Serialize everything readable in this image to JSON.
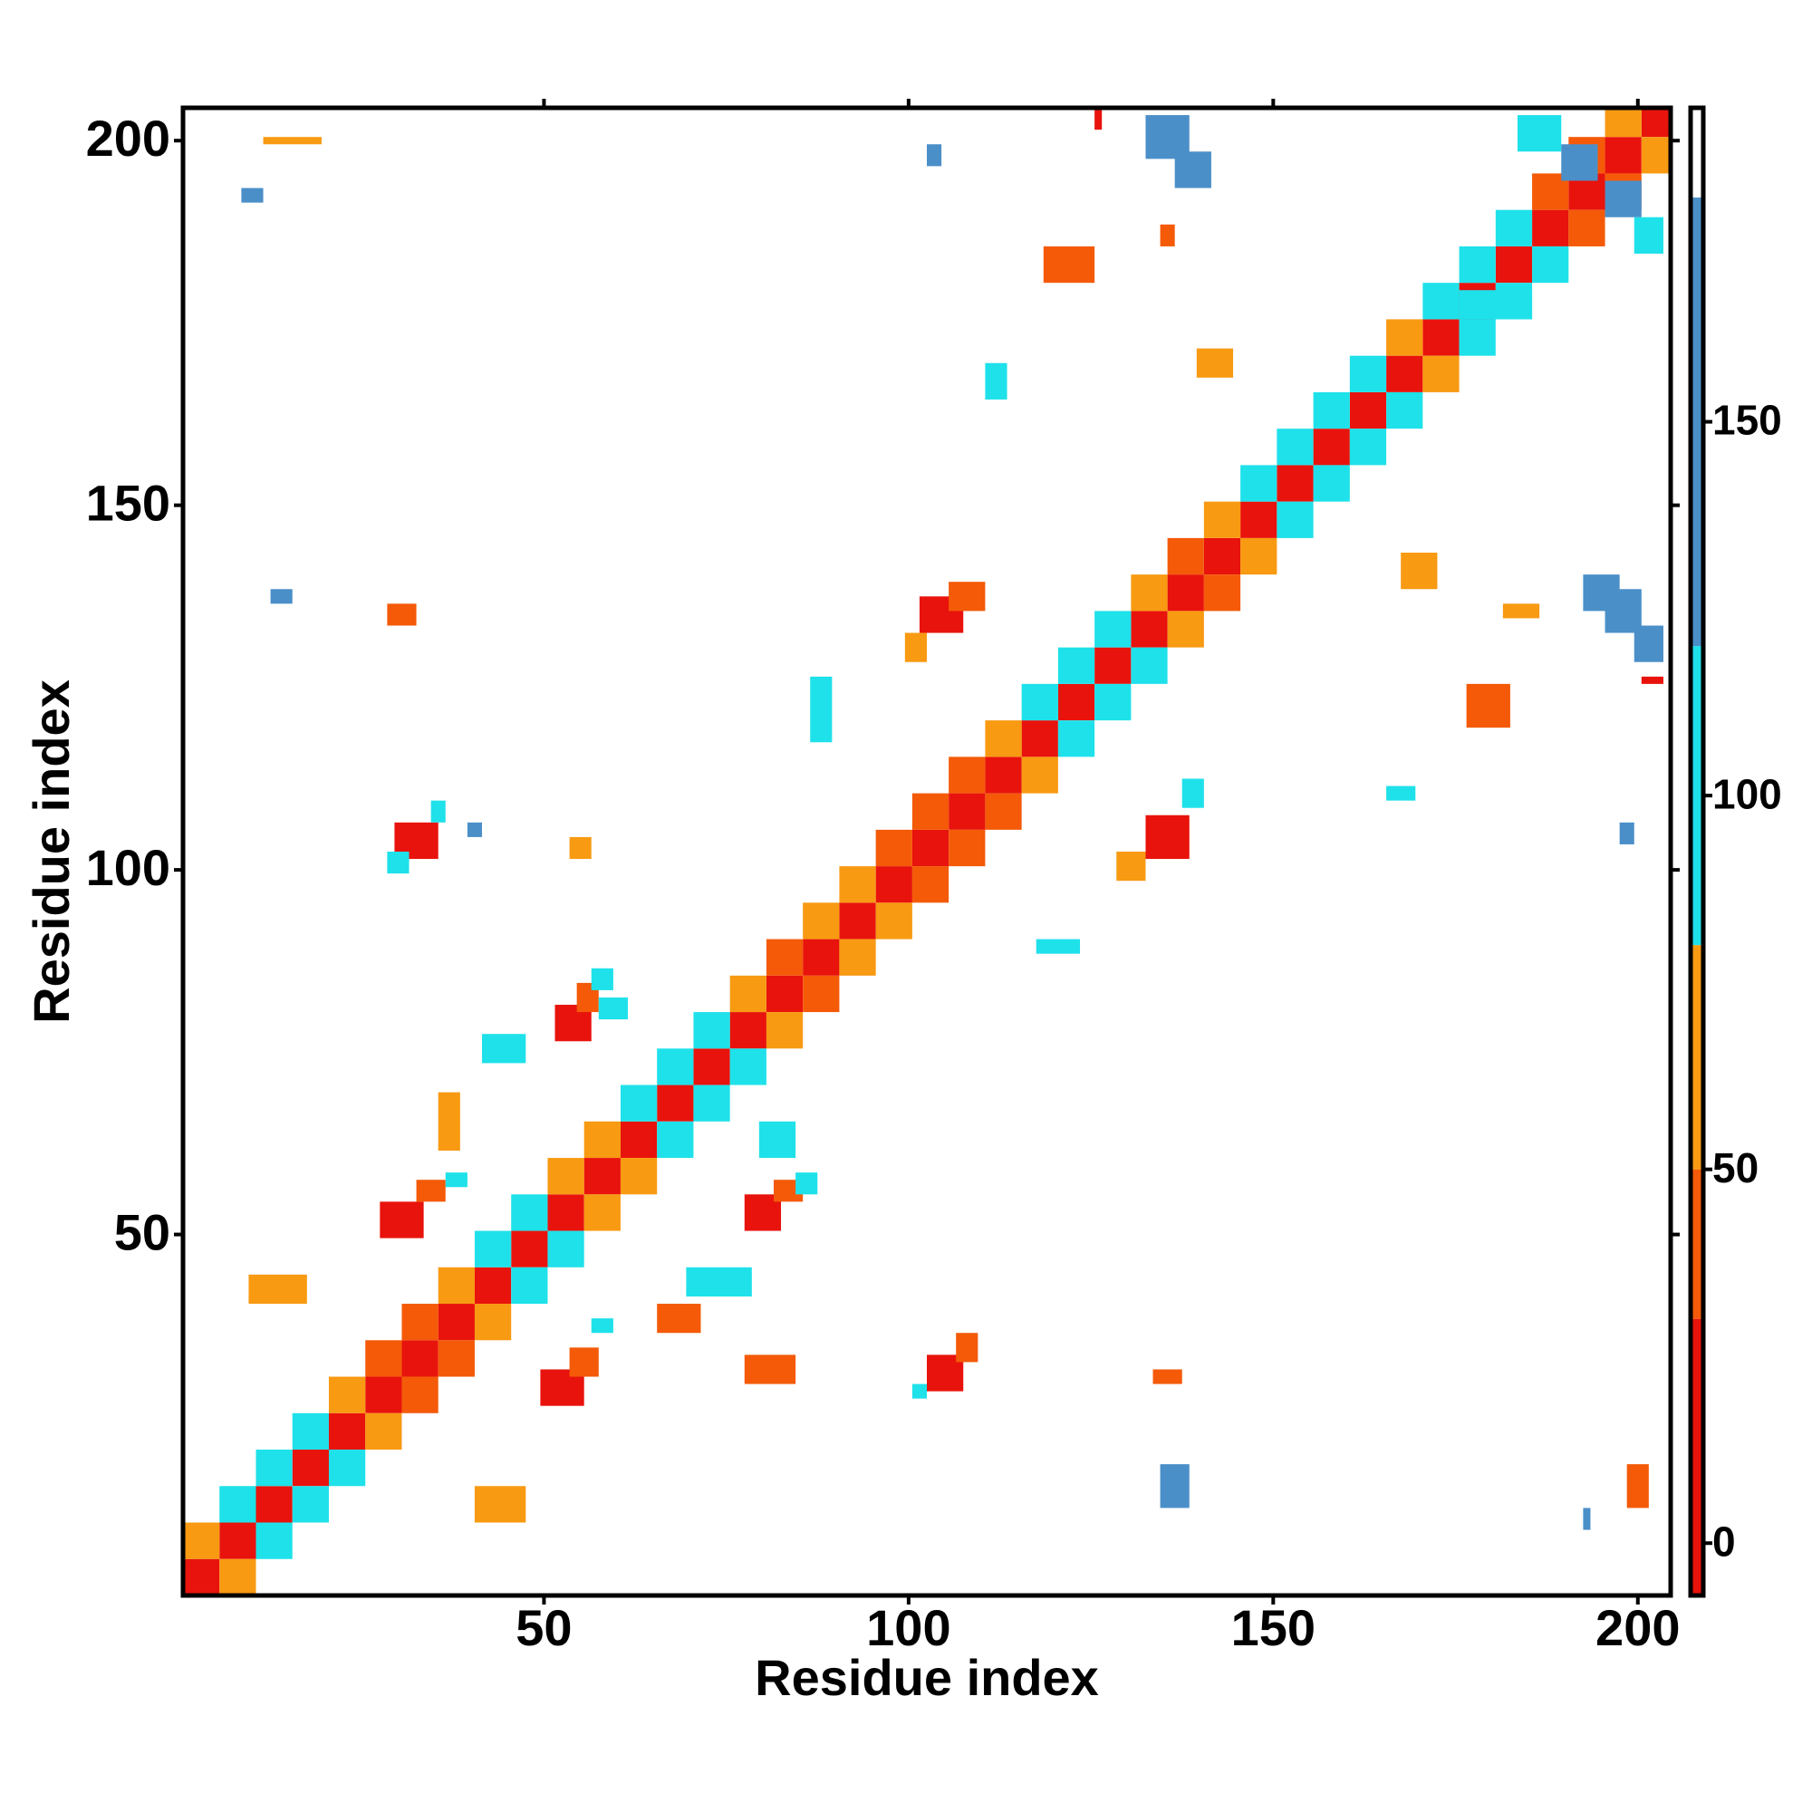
{
  "chart_data": {
    "type": "heatmap",
    "xlabel": "Residue index",
    "ylabel": "Residue index",
    "xlim": [
      0.5,
      204.5
    ],
    "ylim": [
      0.5,
      204.5
    ],
    "xticks": [
      50,
      100,
      150,
      200
    ],
    "yticks": [
      50,
      100,
      150,
      200
    ],
    "colorbar": {
      "levels": [
        -7,
        30,
        50,
        80,
        120,
        180,
        192
      ],
      "colors": [
        "#e8130c",
        "#f45a08",
        "#f89a12",
        "#1fe1ea",
        "#4b8fc8",
        "#ffffff"
      ],
      "ticks": [
        0,
        50,
        100,
        150
      ]
    },
    "cells": [
      [
        1,
        1,
        5,
        5,
        10
      ],
      [
        6,
        6,
        5,
        5,
        10
      ],
      [
        11,
        11,
        5,
        5,
        10
      ],
      [
        16,
        16,
        5,
        5,
        10
      ],
      [
        21,
        21,
        5,
        5,
        10
      ],
      [
        26,
        26,
        5,
        5,
        10
      ],
      [
        31,
        31,
        5,
        5,
        10
      ],
      [
        36,
        36,
        5,
        5,
        10
      ],
      [
        41,
        41,
        5,
        5,
        10
      ],
      [
        46,
        46,
        5,
        5,
        10
      ],
      [
        51,
        51,
        5,
        5,
        10
      ],
      [
        56,
        56,
        5,
        5,
        10
      ],
      [
        61,
        61,
        5,
        5,
        10
      ],
      [
        66,
        66,
        5,
        5,
        10
      ],
      [
        71,
        71,
        5,
        5,
        10
      ],
      [
        76,
        76,
        5,
        5,
        10
      ],
      [
        81,
        81,
        5,
        5,
        10
      ],
      [
        86,
        86,
        5,
        5,
        10
      ],
      [
        91,
        91,
        5,
        5,
        10
      ],
      [
        96,
        96,
        5,
        5,
        10
      ],
      [
        101,
        101,
        5,
        5,
        10
      ],
      [
        106,
        106,
        5,
        5,
        10
      ],
      [
        111,
        111,
        5,
        5,
        10
      ],
      [
        116,
        116,
        5,
        5,
        10
      ],
      [
        121,
        121,
        5,
        5,
        10
      ],
      [
        126,
        126,
        5,
        5,
        10
      ],
      [
        131,
        131,
        5,
        5,
        10
      ],
      [
        136,
        136,
        5,
        5,
        10
      ],
      [
        141,
        141,
        5,
        5,
        10
      ],
      [
        146,
        146,
        5,
        5,
        10
      ],
      [
        151,
        151,
        5,
        5,
        10
      ],
      [
        156,
        156,
        5,
        5,
        10
      ],
      [
        161,
        161,
        5,
        5,
        10
      ],
      [
        166,
        166,
        5,
        5,
        10
      ],
      [
        171,
        171,
        5,
        5,
        10
      ],
      [
        176,
        176,
        5,
        5,
        10
      ],
      [
        181,
        181,
        5,
        5,
        10
      ],
      [
        186,
        186,
        5,
        5,
        10
      ],
      [
        191,
        191,
        5,
        5,
        10
      ],
      [
        196,
        196,
        5,
        5,
        10
      ],
      [
        201,
        201,
        4,
        4,
        10
      ],
      [
        1,
        6,
        5,
        5,
        65
      ],
      [
        6,
        1,
        5,
        5,
        65
      ],
      [
        6,
        11,
        5,
        5,
        100
      ],
      [
        11,
        6,
        5,
        5,
        100
      ],
      [
        11,
        16,
        5,
        5,
        100
      ],
      [
        16,
        11,
        5,
        5,
        100
      ],
      [
        16,
        21,
        5,
        5,
        100
      ],
      [
        21,
        16,
        5,
        5,
        100
      ],
      [
        21,
        26,
        5,
        5,
        65
      ],
      [
        26,
        21,
        5,
        5,
        65
      ],
      [
        26,
        31,
        5,
        5,
        40
      ],
      [
        31,
        26,
        5,
        5,
        40
      ],
      [
        31,
        36,
        5,
        5,
        40
      ],
      [
        36,
        31,
        5,
        5,
        40
      ],
      [
        36,
        41,
        5,
        5,
        65
      ],
      [
        41,
        36,
        5,
        5,
        65
      ],
      [
        41,
        46,
        5,
        5,
        100
      ],
      [
        46,
        41,
        5,
        5,
        100
      ],
      [
        46,
        51,
        5,
        5,
        100
      ],
      [
        51,
        46,
        5,
        5,
        100
      ],
      [
        51,
        56,
        5,
        5,
        65
      ],
      [
        56,
        51,
        5,
        5,
        65
      ],
      [
        56,
        61,
        5,
        5,
        65
      ],
      [
        61,
        56,
        5,
        5,
        65
      ],
      [
        61,
        66,
        5,
        5,
        100
      ],
      [
        66,
        61,
        5,
        5,
        100
      ],
      [
        66,
        71,
        5,
        5,
        100
      ],
      [
        71,
        66,
        5,
        5,
        100
      ],
      [
        71,
        76,
        5,
        5,
        100
      ],
      [
        76,
        71,
        5,
        5,
        100
      ],
      [
        76,
        81,
        5,
        5,
        65
      ],
      [
        81,
        76,
        5,
        5,
        65
      ],
      [
        81,
        86,
        5,
        5,
        40
      ],
      [
        86,
        81,
        5,
        5,
        40
      ],
      [
        86,
        91,
        5,
        5,
        65
      ],
      [
        91,
        86,
        5,
        5,
        65
      ],
      [
        91,
        96,
        5,
        5,
        65
      ],
      [
        96,
        91,
        5,
        5,
        65
      ],
      [
        96,
        101,
        5,
        5,
        40
      ],
      [
        101,
        96,
        5,
        5,
        40
      ],
      [
        101,
        106,
        5,
        5,
        40
      ],
      [
        106,
        101,
        5,
        5,
        40
      ],
      [
        106,
        111,
        5,
        5,
        40
      ],
      [
        111,
        106,
        5,
        5,
        40
      ],
      [
        111,
        116,
        5,
        5,
        65
      ],
      [
        116,
        111,
        5,
        5,
        65
      ],
      [
        116,
        121,
        5,
        5,
        100
      ],
      [
        121,
        116,
        5,
        5,
        100
      ],
      [
        121,
        126,
        5,
        5,
        100
      ],
      [
        126,
        121,
        5,
        5,
        100
      ],
      [
        126,
        131,
        5,
        5,
        100
      ],
      [
        131,
        126,
        5,
        5,
        100
      ],
      [
        131,
        136,
        5,
        5,
        65
      ],
      [
        136,
        131,
        5,
        5,
        65
      ],
      [
        136,
        141,
        5,
        5,
        40
      ],
      [
        141,
        136,
        5,
        5,
        40
      ],
      [
        141,
        146,
        5,
        5,
        65
      ],
      [
        146,
        141,
        5,
        5,
        65
      ],
      [
        146,
        151,
        5,
        5,
        100
      ],
      [
        151,
        146,
        5,
        5,
        100
      ],
      [
        151,
        156,
        5,
        5,
        100
      ],
      [
        156,
        151,
        5,
        5,
        100
      ],
      [
        156,
        161,
        5,
        5,
        100
      ],
      [
        161,
        156,
        5,
        5,
        100
      ],
      [
        161,
        166,
        5,
        5,
        100
      ],
      [
        166,
        161,
        5,
        5,
        100
      ],
      [
        166,
        171,
        5,
        5,
        65
      ],
      [
        171,
        166,
        5,
        5,
        65
      ],
      [
        171,
        176,
        5,
        5,
        100
      ],
      [
        176,
        171,
        5,
        5,
        100
      ],
      [
        176,
        181,
        5,
        5,
        100
      ],
      [
        181,
        176,
        5,
        5,
        100
      ],
      [
        181,
        186,
        5,
        5,
        100
      ],
      [
        186,
        181,
        5,
        5,
        100
      ],
      [
        186,
        191,
        5,
        5,
        40
      ],
      [
        191,
        186,
        5,
        5,
        40
      ],
      [
        191,
        196,
        5,
        5,
        40
      ],
      [
        196,
        191,
        5,
        5,
        40
      ],
      [
        196,
        201,
        5,
        4,
        65
      ],
      [
        201,
        196,
        4,
        5,
        65
      ],
      [
        133,
        198,
        6,
        6,
        150
      ],
      [
        137,
        194,
        5,
        5,
        150
      ],
      [
        196,
        133,
        5,
        6,
        150
      ],
      [
        200,
        129,
        4,
        5,
        150
      ],
      [
        193,
        136,
        5,
        5,
        150
      ],
      [
        184,
        199,
        6,
        5,
        100
      ],
      [
        190,
        195,
        5,
        5,
        150
      ],
      [
        196,
        190,
        5,
        5,
        150
      ],
      [
        200,
        185,
        4,
        5,
        100
      ],
      [
        102,
        133,
        6,
        5,
        10
      ],
      [
        106,
        136,
        5,
        4,
        40
      ],
      [
        100,
        129,
        3,
        4,
        65
      ],
      [
        133,
        102,
        6,
        6,
        10
      ],
      [
        129,
        99,
        4,
        4,
        65
      ],
      [
        138,
        109,
        3,
        4,
        100
      ],
      [
        30,
        102,
        6,
        5,
        10
      ],
      [
        29,
        100,
        3,
        3,
        100
      ],
      [
        35,
        107,
        2,
        3,
        100
      ],
      [
        103,
        29,
        5,
        5,
        10
      ],
      [
        101,
        28,
        2,
        2,
        100
      ],
      [
        107,
        33,
        3,
        4,
        40
      ],
      [
        52,
        77,
        5,
        5,
        10
      ],
      [
        55,
        81,
        3,
        4,
        40
      ],
      [
        57,
        84,
        3,
        3,
        100
      ],
      [
        78,
        51,
        5,
        5,
        10
      ],
      [
        82,
        55,
        4,
        3,
        40
      ],
      [
        85,
        56,
        3,
        3,
        100
      ],
      [
        28,
        50,
        6,
        5,
        10
      ],
      [
        33,
        55,
        4,
        3,
        40
      ],
      [
        37,
        57,
        3,
        2,
        100
      ],
      [
        50,
        27,
        6,
        5,
        10
      ],
      [
        54,
        31,
        4,
        4,
        40
      ],
      [
        57,
        37,
        3,
        2,
        100
      ],
      [
        140,
        168,
        5,
        4,
        65
      ],
      [
        168,
        139,
        5,
        5,
        65
      ],
      [
        135,
        186,
        2,
        3,
        40
      ],
      [
        182,
        135,
        5,
        2,
        65
      ],
      [
        201,
        126,
        3,
        1,
        10
      ],
      [
        126,
        202,
        1,
        3,
        10
      ],
      [
        166,
        110,
        4,
        2,
        100
      ],
      [
        198,
        104,
        2,
        3,
        150
      ],
      [
        9,
        192,
        3,
        2,
        150
      ],
      [
        103,
        197,
        2,
        3,
        150
      ],
      [
        13,
        137,
        3,
        2,
        150
      ],
      [
        40,
        105,
        2,
        2,
        150
      ],
      [
        118,
        89,
        6,
        2,
        100
      ],
      [
        42,
        74,
        6,
        4,
        100
      ],
      [
        58,
        80,
        4,
        3,
        100
      ],
      [
        12,
        200,
        8,
        1,
        65
      ],
      [
        10,
        41,
        8,
        4,
        65
      ],
      [
        41,
        11,
        7,
        5,
        65
      ],
      [
        199,
        13,
        3,
        6,
        40
      ],
      [
        134,
        30,
        4,
        2,
        40
      ],
      [
        66,
        37,
        6,
        4,
        40
      ],
      [
        78,
        30,
        7,
        4,
        40
      ],
      [
        119,
        181,
        7,
        5,
        40
      ],
      [
        177,
        120,
        6,
        6,
        40
      ],
      [
        36,
        62,
        3,
        8,
        65
      ],
      [
        29,
        134,
        4,
        3,
        40
      ],
      [
        54,
        102,
        3,
        3,
        65
      ],
      [
        135,
        13,
        4,
        6,
        150
      ],
      [
        193,
        10,
        1,
        3,
        150
      ],
      [
        70,
        42,
        9,
        4,
        100
      ],
      [
        80,
        61,
        5,
        5,
        100
      ],
      [
        87,
        118,
        3,
        9,
        100
      ],
      [
        111,
        165,
        3,
        5,
        100
      ],
      [
        176,
        176,
        10,
        4,
        100
      ]
    ]
  }
}
